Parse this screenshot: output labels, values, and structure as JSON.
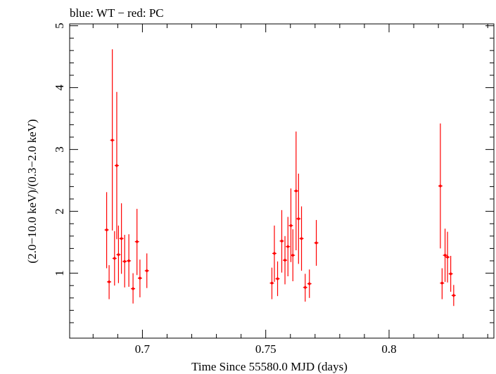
{
  "chart_data": {
    "type": "scatter",
    "title": "blue: WT − red: PC",
    "xlabel": "Time Since 55580.0 MJD (days)",
    "ylabel": "(2.0−10.0 keV)/(0.3−2.0 keV)",
    "xlim": [
      0.6705,
      0.8425
    ],
    "ylim": [
      -0.05,
      5.03
    ],
    "x_ticks": [
      {
        "value": 0.7,
        "label": "0.7"
      },
      {
        "value": 0.75,
        "label": "0.75"
      },
      {
        "value": 0.8,
        "label": "0.8"
      }
    ],
    "y_ticks": [
      {
        "value": 1,
        "label": "1"
      },
      {
        "value": 2,
        "label": "2"
      },
      {
        "value": 3,
        "label": "3"
      },
      {
        "value": 4,
        "label": "4"
      },
      {
        "value": 5,
        "label": "5"
      }
    ],
    "series": [
      {
        "name": "PC",
        "color": "#ff0000",
        "points": [
          {
            "x": 0.6855,
            "y": 1.7,
            "ylo": 1.08,
            "yhi": 2.31
          },
          {
            "x": 0.6865,
            "y": 0.86,
            "ylo": 0.58,
            "yhi": 1.13
          },
          {
            "x": 0.6878,
            "y": 3.15,
            "ylo": 1.69,
            "yhi": 4.62
          },
          {
            "x": 0.6887,
            "y": 1.24,
            "ylo": 0.8,
            "yhi": 1.68
          },
          {
            "x": 0.6896,
            "y": 2.74,
            "ylo": 1.55,
            "yhi": 3.93
          },
          {
            "x": 0.6903,
            "y": 1.3,
            "ylo": 0.84,
            "yhi": 1.77
          },
          {
            "x": 0.6915,
            "y": 1.56,
            "ylo": 0.99,
            "yhi": 2.13
          },
          {
            "x": 0.6928,
            "y": 1.19,
            "ylo": 0.77,
            "yhi": 1.62
          },
          {
            "x": 0.6945,
            "y": 1.2,
            "ylo": 0.78,
            "yhi": 1.63
          },
          {
            "x": 0.6962,
            "y": 0.75,
            "ylo": 0.51,
            "yhi": 1.0
          },
          {
            "x": 0.6978,
            "y": 1.51,
            "ylo": 0.97,
            "yhi": 2.04
          },
          {
            "x": 0.699,
            "y": 0.92,
            "ylo": 0.61,
            "yhi": 1.22
          },
          {
            "x": 0.7018,
            "y": 1.04,
            "ylo": 0.76,
            "yhi": 1.32
          },
          {
            "x": 0.7525,
            "y": 0.84,
            "ylo": 0.58,
            "yhi": 1.09
          },
          {
            "x": 0.7535,
            "y": 1.32,
            "ylo": 0.86,
            "yhi": 1.77
          },
          {
            "x": 0.7548,
            "y": 0.91,
            "ylo": 0.63,
            "yhi": 1.19
          },
          {
            "x": 0.7565,
            "y": 1.52,
            "ylo": 1.01,
            "yhi": 2.02
          },
          {
            "x": 0.7578,
            "y": 1.21,
            "ylo": 0.82,
            "yhi": 1.6
          },
          {
            "x": 0.759,
            "y": 1.43,
            "ylo": 0.95,
            "yhi": 1.91
          },
          {
            "x": 0.7602,
            "y": 1.77,
            "ylo": 1.18,
            "yhi": 2.37
          },
          {
            "x": 0.761,
            "y": 1.29,
            "ylo": 0.87,
            "yhi": 1.71
          },
          {
            "x": 0.7623,
            "y": 2.33,
            "ylo": 1.37,
            "yhi": 3.29
          },
          {
            "x": 0.7633,
            "y": 1.88,
            "ylo": 1.15,
            "yhi": 2.61
          },
          {
            "x": 0.7645,
            "y": 1.56,
            "ylo": 1.04,
            "yhi": 2.08
          },
          {
            "x": 0.766,
            "y": 0.77,
            "ylo": 0.54,
            "yhi": 0.99
          },
          {
            "x": 0.7677,
            "y": 0.83,
            "ylo": 0.6,
            "yhi": 1.06
          },
          {
            "x": 0.7705,
            "y": 1.49,
            "ylo": 1.12,
            "yhi": 1.86
          },
          {
            "x": 0.8208,
            "y": 2.41,
            "ylo": 1.4,
            "yhi": 3.42
          },
          {
            "x": 0.8215,
            "y": 0.84,
            "ylo": 0.58,
            "yhi": 1.08
          },
          {
            "x": 0.8227,
            "y": 1.29,
            "ylo": 0.86,
            "yhi": 1.72
          },
          {
            "x": 0.8237,
            "y": 1.26,
            "ylo": 0.85,
            "yhi": 1.67
          },
          {
            "x": 0.825,
            "y": 0.99,
            "ylo": 0.7,
            "yhi": 1.28
          },
          {
            "x": 0.8262,
            "y": 0.64,
            "ylo": 0.47,
            "yhi": 0.81
          }
        ]
      }
    ]
  }
}
